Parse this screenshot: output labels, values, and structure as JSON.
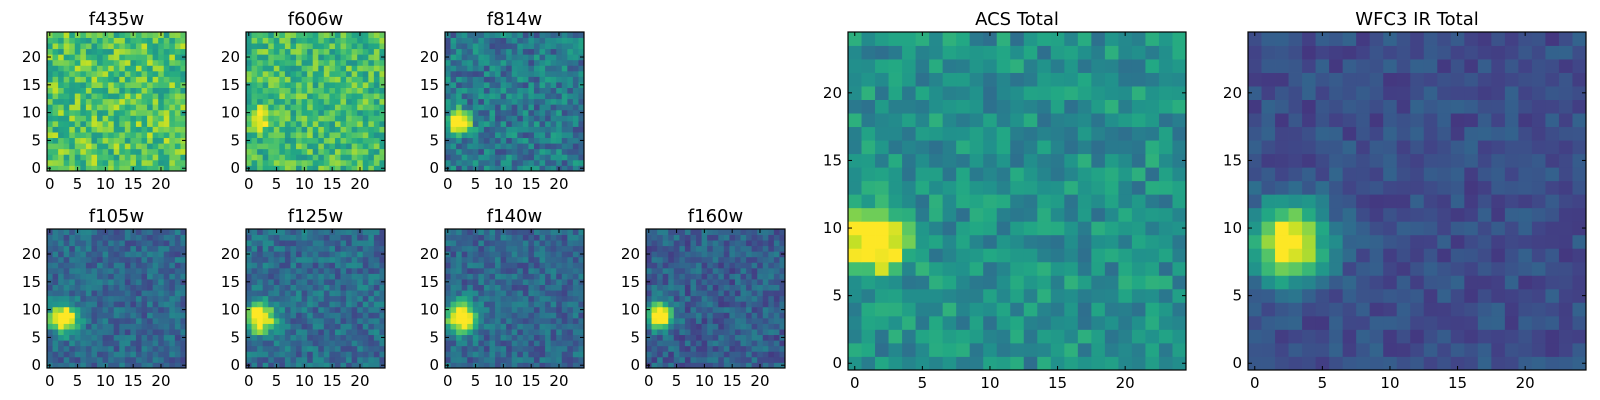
{
  "chart_data": [
    {
      "id": "f435w",
      "type": "heatmap",
      "title": "f435w",
      "colormap": "viridis",
      "grid": [
        25,
        25
      ],
      "xlim": [
        0,
        24
      ],
      "ylim": [
        0,
        24
      ],
      "xticks": [
        "0",
        "5",
        "10",
        "15",
        "20"
      ],
      "yticks": [
        "0",
        "5",
        "10",
        "15",
        "20"
      ],
      "background_level": 0.72,
      "noise": 0.2,
      "seed": 11,
      "sources": []
    },
    {
      "id": "f606w",
      "type": "heatmap",
      "title": "f606w",
      "colormap": "viridis",
      "grid": [
        25,
        25
      ],
      "xlim": [
        0,
        24
      ],
      "ylim": [
        0,
        24
      ],
      "xticks": [
        "0",
        "5",
        "10",
        "15",
        "20"
      ],
      "yticks": [
        "0",
        "5",
        "10",
        "15",
        "20"
      ],
      "background_level": 0.68,
      "noise": 0.18,
      "seed": 23,
      "sources": [
        {
          "x": 2,
          "y": 9,
          "peak": 0.45,
          "sigma": 1.2
        }
      ]
    },
    {
      "id": "f814w",
      "type": "heatmap",
      "title": "f814w",
      "colormap": "viridis",
      "grid": [
        25,
        25
      ],
      "xlim": [
        0,
        24
      ],
      "ylim": [
        0,
        24
      ],
      "xticks": [
        "0",
        "5",
        "10",
        "15",
        "20"
      ],
      "yticks": [
        "0",
        "5",
        "10",
        "15",
        "20"
      ],
      "background_level": 0.4,
      "noise": 0.18,
      "seed": 37,
      "sources": [
        {
          "x": 2,
          "y": 8.5,
          "peak": 0.95,
          "sigma": 1.4
        }
      ]
    },
    {
      "id": "f105w",
      "type": "heatmap",
      "title": "f105w",
      "colormap": "viridis",
      "grid": [
        25,
        25
      ],
      "xlim": [
        0,
        24
      ],
      "ylim": [
        0,
        24
      ],
      "xticks": [
        "0",
        "5",
        "10",
        "15",
        "20"
      ],
      "yticks": [
        "0",
        "5",
        "10",
        "15",
        "20"
      ],
      "background_level": 0.33,
      "noise": 0.13,
      "seed": 41,
      "sources": [
        {
          "x": 2.5,
          "y": 8.5,
          "peak": 0.9,
          "sigma": 1.8
        }
      ]
    },
    {
      "id": "f125w",
      "type": "heatmap",
      "title": "f125w",
      "colormap": "viridis",
      "grid": [
        25,
        25
      ],
      "xlim": [
        0,
        24
      ],
      "ylim": [
        0,
        24
      ],
      "xticks": [
        "0",
        "5",
        "10",
        "15",
        "20"
      ],
      "yticks": [
        "0",
        "5",
        "10",
        "15",
        "20"
      ],
      "background_level": 0.35,
      "noise": 0.14,
      "seed": 53,
      "sources": [
        {
          "x": 2,
          "y": 8.5,
          "peak": 0.85,
          "sigma": 1.9
        }
      ]
    },
    {
      "id": "f140w",
      "type": "heatmap",
      "title": "f140w",
      "colormap": "viridis",
      "grid": [
        25,
        25
      ],
      "xlim": [
        0,
        24
      ],
      "ylim": [
        0,
        24
      ],
      "xticks": [
        "0",
        "5",
        "10",
        "15",
        "20"
      ],
      "yticks": [
        "0",
        "5",
        "10",
        "15",
        "20"
      ],
      "background_level": 0.33,
      "noise": 0.13,
      "seed": 67,
      "sources": [
        {
          "x": 2.5,
          "y": 8.5,
          "peak": 0.9,
          "sigma": 1.9
        }
      ]
    },
    {
      "id": "f160w",
      "type": "heatmap",
      "title": "f160w",
      "colormap": "viridis",
      "grid": [
        25,
        25
      ],
      "xlim": [
        0,
        24
      ],
      "ylim": [
        0,
        24
      ],
      "xticks": [
        "0",
        "5",
        "10",
        "15",
        "20"
      ],
      "yticks": [
        "0",
        "5",
        "10",
        "15",
        "20"
      ],
      "background_level": 0.3,
      "noise": 0.13,
      "seed": 79,
      "sources": [
        {
          "x": 2,
          "y": 9,
          "peak": 0.92,
          "sigma": 1.6
        }
      ]
    },
    {
      "id": "acs-total",
      "type": "heatmap",
      "title": "ACS Total",
      "colormap": "viridis",
      "grid": [
        25,
        25
      ],
      "xlim": [
        0,
        24
      ],
      "ylim": [
        0,
        24
      ],
      "xticks": [
        "0",
        "5",
        "10",
        "15",
        "20"
      ],
      "yticks": [
        "0",
        "5",
        "10",
        "15",
        "20"
      ],
      "background_level": 0.5,
      "noise": 0.14,
      "seed": 97,
      "sources": [
        {
          "x": 1.5,
          "y": 9,
          "peak": 0.8,
          "sigma": 1.5
        }
      ]
    },
    {
      "id": "wfc3-ir-total",
      "type": "heatmap",
      "title": "WFC3 IR Total",
      "colormap": "viridis",
      "grid": [
        25,
        25
      ],
      "xlim": [
        0,
        24
      ],
      "ylim": [
        0,
        24
      ],
      "xticks": [
        "0",
        "5",
        "10",
        "15",
        "20"
      ],
      "yticks": [
        "0",
        "5",
        "10",
        "15",
        "20"
      ],
      "background_level": 0.24,
      "noise": 0.08,
      "seed": 113,
      "sources": [
        {
          "x": 2.5,
          "y": 9,
          "peak": 0.85,
          "sigma": 2.0
        }
      ]
    }
  ]
}
